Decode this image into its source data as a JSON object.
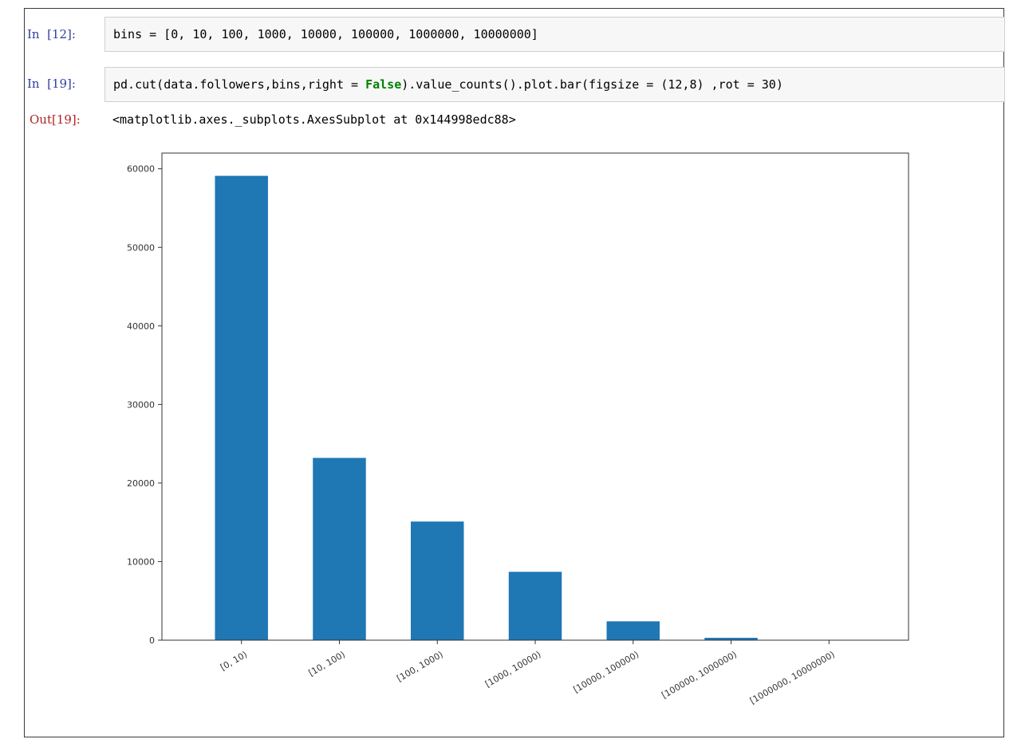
{
  "cells": [
    {
      "prompt": "In  [12]:",
      "code": "bins = [0, 10, 100, 1000, 10000, 100000, 1000000, 10000000]"
    },
    {
      "prompt": "In  [19]:",
      "code_before": "pd.cut(data.followers,bins,right = ",
      "code_keyword": "False",
      "code_after": ").value_counts().plot.bar(figsize = (12,8) ,rot = 30)"
    }
  ],
  "output": {
    "prompt": "Out[19]:",
    "text": "<matplotlib.axes._subplots.AxesSubplot at 0x144998edc88>"
  },
  "colors": {
    "bar": "#1f77b4",
    "in_prompt": "#303f9f",
    "out_prompt": "#b22222"
  },
  "chart_data": {
    "type": "bar",
    "categories": [
      "[0, 10)",
      "[10, 100)",
      "[100, 1000)",
      "[1000, 10000)",
      "[10000, 100000)",
      "[100000, 1000000)",
      "[1000000, 10000000)"
    ],
    "values": [
      59100,
      23200,
      15100,
      8700,
      2400,
      300,
      0
    ],
    "yticks": [
      0,
      10000,
      20000,
      30000,
      40000,
      50000,
      60000
    ],
    "ylim": [
      0,
      62000
    ],
    "xlabel_rotation": 30,
    "grid": false,
    "title": "",
    "xlabel": "",
    "ylabel": ""
  }
}
